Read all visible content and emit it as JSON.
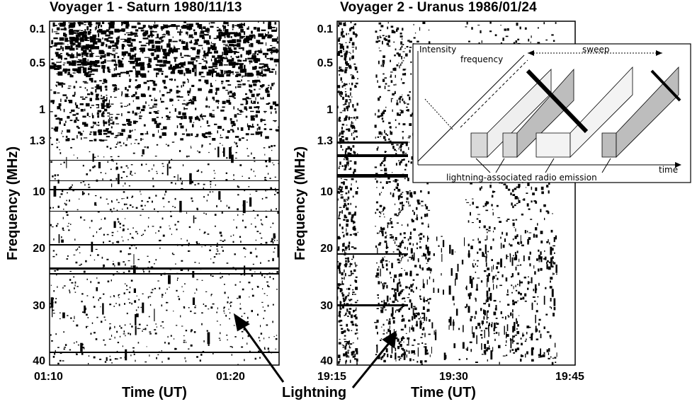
{
  "chart_data": [
    {
      "type": "heatmap",
      "title": "Voyager 1 - Saturn  1980/11/13",
      "ylabel": "Frequency (MHz)",
      "xlabel": "Time (UT)",
      "y_ticks": [
        "0.1",
        "0.5",
        "1",
        "1.3",
        "10",
        "20",
        "30",
        "40"
      ],
      "x_ticks": [
        "01:10",
        "01:20"
      ]
    },
    {
      "type": "heatmap",
      "title": "Voyager 2 - Uranus  1986/01/24",
      "ylabel": "Frequency (MHz)",
      "xlabel": "Time (UT)",
      "y_ticks": [
        "0.1",
        "0.5",
        "1",
        "1.3",
        "10",
        "20",
        "30",
        "40"
      ],
      "x_ticks": [
        "19:15",
        "19:30",
        "19:45"
      ]
    }
  ],
  "annotation": {
    "label": "Lightning"
  },
  "inset": {
    "intensity_label": "Intensity",
    "frequency_label": "frequency",
    "sweep_label": "sweep",
    "time_label": "time",
    "emission_label": "lightning-associated radio emission"
  }
}
